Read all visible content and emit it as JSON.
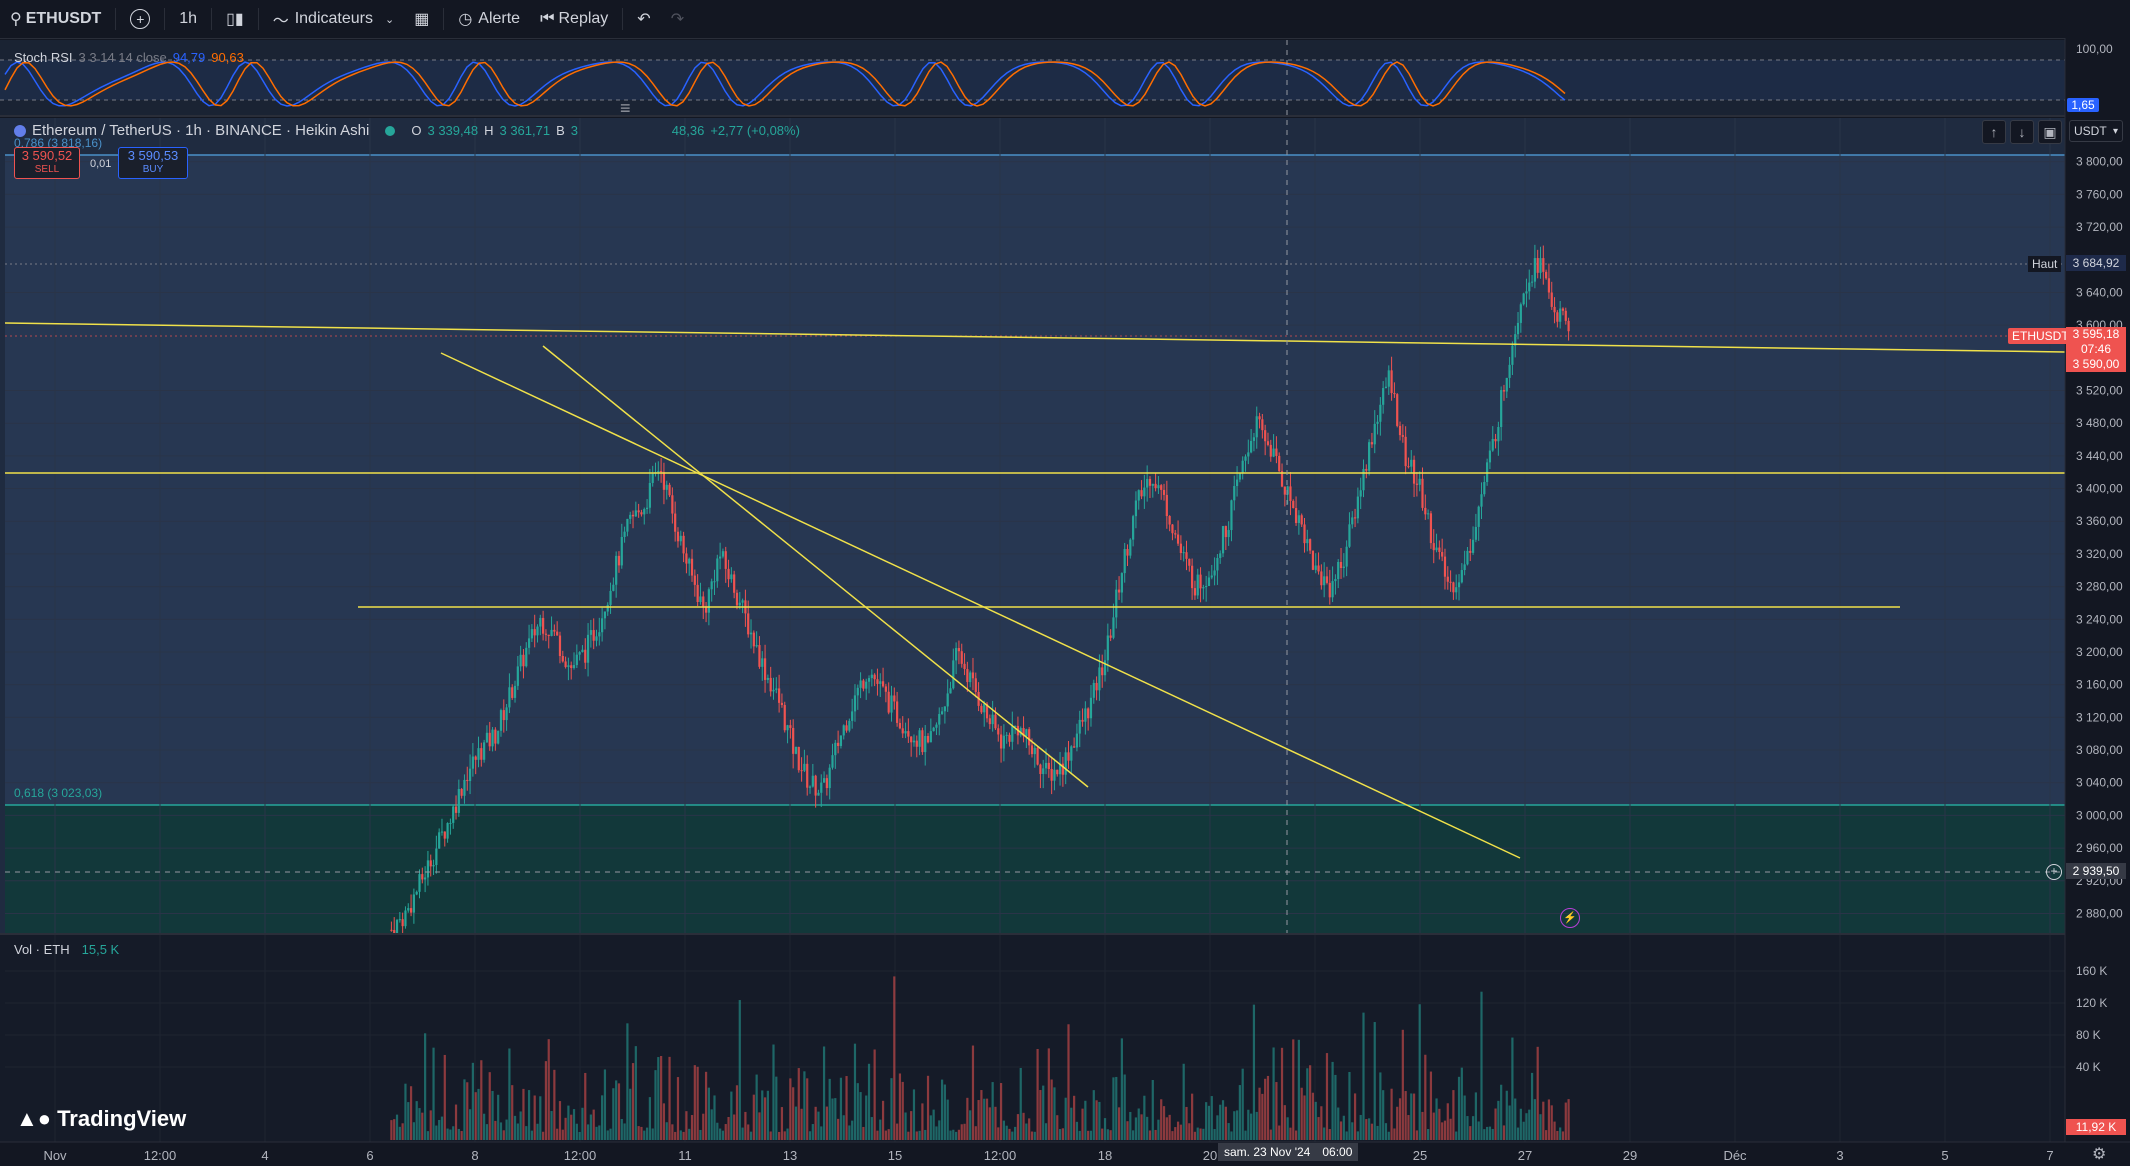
{
  "toolbar": {
    "symbol": "ETHUSDT",
    "interval": "1h",
    "indicators_label": "Indicateurs",
    "alert_label": "Alerte",
    "replay_label": "Replay"
  },
  "stoch": {
    "name": "Stoch RSI",
    "params": "3 3 14 14 close",
    "k_value": "94,79",
    "d_value": "90,63",
    "axis_top": "100,00",
    "axis_current": "1,65"
  },
  "main": {
    "title": "Ethereum / TetherUS · 1h · BINANCE · Heikin Ashi",
    "o_label": "O",
    "o_value": "3 339,48",
    "h_label": "H",
    "h_value": "3 361,71",
    "b_label": "B",
    "b_value": "3",
    "close_partial": "48,36",
    "change": "+2,77 (+0,08%)",
    "sell_price": "3 590,52",
    "sell_label": "SELL",
    "spread": "0,01",
    "buy_price": "3 590,53",
    "buy_label": "BUY",
    "fib_top": "0,786 (3 818,16)",
    "fib_618": "0,618 (3 023,03)",
    "currency": "USDT",
    "high_label": "Haut",
    "high_value": "3 684,92",
    "symbol_tag": "ETHUSDT",
    "last_price": "3 595,18",
    "countdown": "07:46",
    "bid_price": "3 590,00",
    "crosshair_price": "2 939,50"
  },
  "price_axis": [
    "3 800,00",
    "3 760,00",
    "3 720,00",
    "3 640,00",
    "3 600,00",
    "3 520,00",
    "3 480,00",
    "3 440,00",
    "3 400,00",
    "3 360,00",
    "3 320,00",
    "3 280,00",
    "3 240,00",
    "3 200,00",
    "3 160,00",
    "3 120,00",
    "3 080,00",
    "3 040,00",
    "3 000,00",
    "2 960,00",
    "2 920,00",
    "2 880,00"
  ],
  "volume": {
    "label": "Vol · ETH",
    "value": "15,5 K",
    "axis": [
      "160 K",
      "120 K",
      "80 K",
      "40 K"
    ],
    "current": "11,92 K"
  },
  "time_axis": [
    "Nov",
    "12:00",
    "4",
    "6",
    "8",
    "12:00",
    "11",
    "13",
    "15",
    "12:00",
    "18",
    "20",
    "2",
    "25",
    "27",
    "29",
    "Déc",
    "3",
    "5",
    "7"
  ],
  "crosshair_time": "sam. 23 Nov '24",
  "crosshair_time2": "06:00",
  "brand": "TradingView",
  "colors": {
    "bg": "#131722",
    "up": "#26a69a",
    "down": "#ef5350",
    "trend": "#f0e14a",
    "accent": "#2962ff"
  },
  "chart_data": {
    "type": "candlestick",
    "series": [
      {
        "name": "ETHUSDT",
        "path_prices": [
          2860,
          2880,
          2920,
          2960,
          3000,
          3050,
          3080,
          3100,
          3150,
          3200,
          3240,
          3220,
          3180,
          3200,
          3240,
          3300,
          3360,
          3380,
          3430,
          3360,
          3300,
          3250,
          3320,
          3280,
          3230,
          3180,
          3140,
          3080,
          3040,
          3030,
          3090,
          3140,
          3180,
          3150,
          3120,
          3100,
          3080,
          3130,
          3200,
          3160,
          3120,
          3090,
          3110,
          3080,
          3050,
          3060,
          3100,
          3140,
          3200,
          3300,
          3380,
          3420,
          3380,
          3320,
          3280,
          3300,
          3350,
          3420,
          3480,
          3450,
          3400,
          3360,
          3300,
          3280,
          3320,
          3400,
          3480,
          3540,
          3440,
          3400,
          3330,
          3280,
          3300,
          3380,
          3460,
          3560,
          3650,
          3680,
          3620,
          3595
        ]
      }
    ],
    "ylim": [
      2860,
      3840
    ]
  }
}
